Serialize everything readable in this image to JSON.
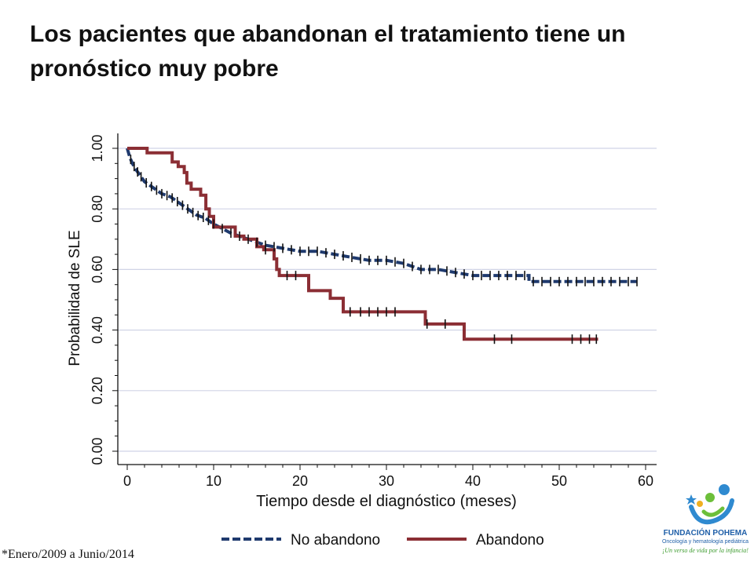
{
  "slide": {
    "title": "Los pacientes que abandonan el tratamiento tiene un\npronóstico muy pobre",
    "footnote": "*Enero/2009  a Junio/2014"
  },
  "logo": {
    "name": "FUNDACIÓN POHEMA",
    "subtitle": "Oncología y hematología pediátrica",
    "tagline": "¡Un verso de vida por la infancia!",
    "icon": "pohema-figure-icon"
  },
  "chart_data": {
    "type": "line",
    "subtype": "kaplan-meier",
    "xlabel": "Tiempo desde el diagnóstico (meses)",
    "ylabel": "Probabilidad de SLE",
    "xlim": [
      0,
      60
    ],
    "ylim": [
      0,
      1
    ],
    "x_ticks": [
      "0",
      "10",
      "20",
      "30",
      "40",
      "50",
      "60"
    ],
    "y_ticks": [
      "0.00",
      "0.20",
      "0.40",
      "0.60",
      "0.80",
      "1.00"
    ],
    "grid": "horizontal",
    "legend_position": "bottom",
    "series": [
      {
        "name": "No abandono",
        "color": "#1f3a6e",
        "style": "dashed",
        "points": [
          [
            0,
            1.0
          ],
          [
            0.3,
            0.97
          ],
          [
            0.6,
            0.95
          ],
          [
            1,
            0.93
          ],
          [
            1.5,
            0.91
          ],
          [
            2,
            0.89
          ],
          [
            3,
            0.87
          ],
          [
            4,
            0.85
          ],
          [
            5,
            0.84
          ],
          [
            6,
            0.82
          ],
          [
            7,
            0.8
          ],
          [
            8,
            0.78
          ],
          [
            9,
            0.77
          ],
          [
            10,
            0.75
          ],
          [
            12,
            0.72
          ],
          [
            14,
            0.7
          ],
          [
            16,
            0.68
          ],
          [
            18,
            0.67
          ],
          [
            20,
            0.66
          ],
          [
            22,
            0.66
          ],
          [
            24,
            0.65
          ],
          [
            26,
            0.64
          ],
          [
            28,
            0.63
          ],
          [
            30,
            0.63
          ],
          [
            32,
            0.62
          ],
          [
            34,
            0.6
          ],
          [
            36,
            0.6
          ],
          [
            38,
            0.59
          ],
          [
            40,
            0.58
          ],
          [
            42,
            0.58
          ],
          [
            44,
            0.58
          ],
          [
            46.5,
            0.58
          ],
          [
            46.5,
            0.56
          ],
          [
            59,
            0.56
          ]
        ],
        "censored": [
          0.4,
          0.8,
          1.2,
          1.6,
          2.2,
          2.8,
          3.4,
          4,
          4.6,
          5.2,
          5.8,
          6.4,
          7,
          7.6,
          8.2,
          8.8,
          9.4,
          10,
          11,
          12,
          13,
          14,
          15,
          16,
          17,
          18,
          19,
          20,
          21,
          22,
          23,
          24,
          25,
          26,
          27,
          28,
          29,
          30,
          31,
          32,
          33,
          34,
          35,
          36,
          37,
          38,
          39,
          40,
          41,
          42,
          43,
          44,
          45,
          46,
          47,
          48,
          49,
          50,
          51,
          52,
          53,
          54,
          55,
          56,
          57,
          58,
          59
        ]
      },
      {
        "name": "Abandono",
        "color": "#8b2e34",
        "style": "solid",
        "points": [
          [
            0,
            1.0
          ],
          [
            2.3,
            1.0
          ],
          [
            2.3,
            0.985
          ],
          [
            5.2,
            0.985
          ],
          [
            5.2,
            0.955
          ],
          [
            5.9,
            0.955
          ],
          [
            5.9,
            0.94
          ],
          [
            6.6,
            0.94
          ],
          [
            6.6,
            0.92
          ],
          [
            6.9,
            0.92
          ],
          [
            6.9,
            0.885
          ],
          [
            7.4,
            0.885
          ],
          [
            7.4,
            0.865
          ],
          [
            8.5,
            0.865
          ],
          [
            8.5,
            0.845
          ],
          [
            9.1,
            0.845
          ],
          [
            9.1,
            0.8
          ],
          [
            9.5,
            0.8
          ],
          [
            9.5,
            0.775
          ],
          [
            10,
            0.775
          ],
          [
            10,
            0.74
          ],
          [
            12.5,
            0.74
          ],
          [
            12.5,
            0.71
          ],
          [
            13.5,
            0.71
          ],
          [
            13.5,
            0.7
          ],
          [
            15,
            0.7
          ],
          [
            15,
            0.675
          ],
          [
            15.8,
            0.675
          ],
          [
            15.8,
            0.665
          ],
          [
            17,
            0.665
          ],
          [
            17,
            0.635
          ],
          [
            17.3,
            0.635
          ],
          [
            17.3,
            0.6
          ],
          [
            17.6,
            0.6
          ],
          [
            17.6,
            0.58
          ],
          [
            21,
            0.58
          ],
          [
            21,
            0.53
          ],
          [
            23.5,
            0.53
          ],
          [
            23.5,
            0.505
          ],
          [
            25,
            0.505
          ],
          [
            25,
            0.46
          ],
          [
            34.5,
            0.46
          ],
          [
            34.5,
            0.42
          ],
          [
            39,
            0.42
          ],
          [
            39,
            0.37
          ],
          [
            54.5,
            0.37
          ]
        ],
        "censored": [
          16,
          18.5,
          19.5,
          25.8,
          27,
          28,
          29,
          30,
          31,
          34.7,
          36.8,
          42.5,
          44.5,
          51.5,
          52.5,
          53.5,
          54.3
        ]
      }
    ]
  }
}
